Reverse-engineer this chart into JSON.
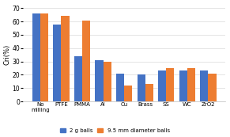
{
  "categories": [
    "No\nmilling",
    "PTFE",
    "PMMA",
    "Al",
    "Cu",
    "Brass",
    "SS",
    "WC",
    "ZrO2"
  ],
  "series1_label": "2 g balls",
  "series2_label": "9.5 mm diameter balls",
  "series1_values": [
    66,
    58,
    34,
    31,
    21,
    20,
    23,
    23,
    23
  ],
  "series2_values": [
    66,
    64,
    61,
    30,
    12,
    13,
    25,
    25,
    21
  ],
  "series1_color": "#4472C4",
  "series2_color": "#ED7D31",
  "ylabel": "Cri(%)",
  "ylim": [
    0,
    70
  ],
  "yticks": [
    0,
    10,
    20,
    30,
    40,
    50,
    60,
    70
  ],
  "background_color": "#ffffff",
  "grid_color": "#d9d9d9",
  "bar_width": 0.38,
  "figsize": [
    2.91,
    1.73
  ],
  "dpi": 100
}
